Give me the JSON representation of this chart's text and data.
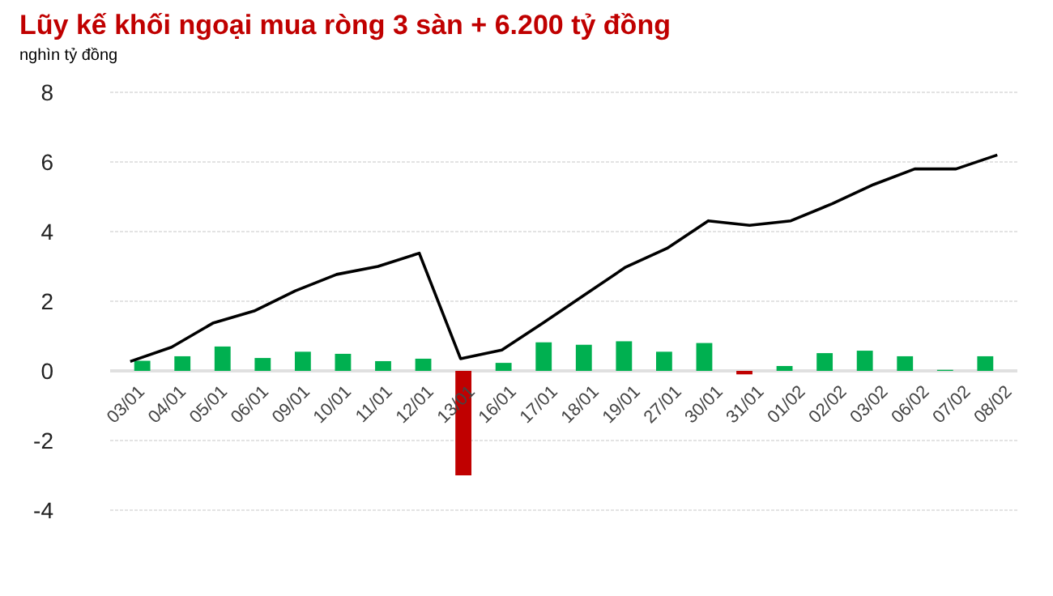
{
  "chart_data": {
    "type": "bar",
    "title": "Lũy kế khối ngoại mua ròng 3 sàn + 6.200 tỷ đồng",
    "ylabel": "nghìn tỷ đồng",
    "categories": [
      "03/01",
      "04/01",
      "05/01",
      "06/01",
      "09/01",
      "10/01",
      "11/01",
      "12/01",
      "13/01",
      "16/01",
      "17/01",
      "18/01",
      "19/01",
      "27/01",
      "30/01",
      "31/01",
      "01/02",
      "02/02",
      "03/02",
      "06/02",
      "07/02",
      "08/02"
    ],
    "series": [
      {
        "colors": [
          "#00b050",
          "#00b050",
          "#00b050",
          "#00b050",
          "#00b050",
          "#00b050",
          "#00b050",
          "#00b050",
          "#c00000",
          "#00b050",
          "#00b050",
          "#00b050",
          "#00b050",
          "#00b050",
          "#00b050",
          "#c00000",
          "#00b050",
          "#00b050",
          "#00b050",
          "#00b050",
          "#00b050",
          "#00b050"
        ],
        "values": [
          0.29,
          0.42,
          0.7,
          0.37,
          0.55,
          0.49,
          0.28,
          0.35,
          -3.0,
          0.23,
          0.82,
          0.75,
          0.85,
          0.55,
          0.8,
          -0.1,
          0.14,
          0.51,
          0.58,
          0.42,
          0.03,
          0.42
        ]
      },
      {
        "type": "line",
        "color": "#000000",
        "values": [
          0.27,
          0.68,
          1.37,
          1.72,
          2.3,
          2.77,
          3.0,
          3.38,
          0.35,
          0.6,
          1.38,
          2.18,
          2.98,
          3.52,
          4.31,
          4.18,
          4.31,
          4.8,
          5.35,
          5.8,
          5.8,
          6.2
        ]
      }
    ],
    "ylim": [
      -4,
      8
    ],
    "yticks": [
      -4,
      -2,
      0,
      2,
      4,
      6,
      8
    ],
    "grid": "y",
    "marker": "none",
    "line_style": "solid"
  }
}
